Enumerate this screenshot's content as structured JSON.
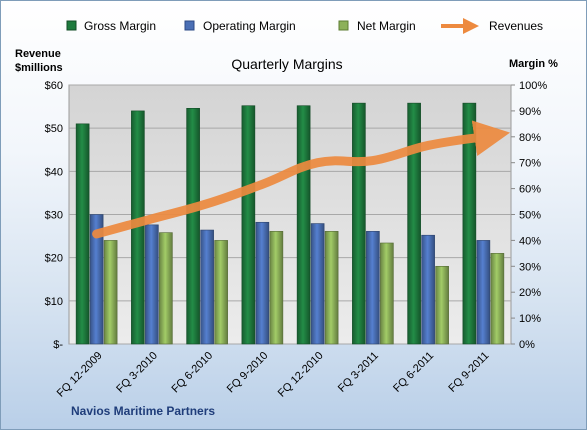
{
  "chart_data": {
    "type": "bar",
    "title": "Quarterly Margins",
    "left_axis_label_line1": "Revenue",
    "left_axis_label_line2": "$millions",
    "right_axis_label": "Margin %",
    "company_label": "Navios Maritime Partners",
    "categories": [
      "FQ 12-2009",
      "FQ 3-2010",
      "FQ 6-2010",
      "FQ 9-2010",
      "FQ 12-2010",
      "FQ 3-2011",
      "FQ 6-2011",
      "FQ 9-2011"
    ],
    "left_ticks": [
      "$-",
      "$10",
      "$20",
      "$30",
      "$40",
      "$50",
      "$60"
    ],
    "right_ticks": [
      "0%",
      "10%",
      "20%",
      "30%",
      "40%",
      "50%",
      "60%",
      "70%",
      "80%",
      "90%",
      "100%"
    ],
    "ylim_left": [
      0,
      60
    ],
    "ylim_right": [
      0,
      100
    ],
    "grid": "horizontal",
    "legend_position": "top",
    "series": [
      {
        "name": "Gross Margin",
        "axis": "right",
        "color": "#1e7b3e",
        "values": [
          85,
          90,
          91,
          92,
          92,
          93,
          93,
          93
        ]
      },
      {
        "name": "Operating Margin",
        "axis": "right",
        "color": "#4a6fb5",
        "values": [
          50,
          46,
          44,
          47,
          46.5,
          43.5,
          42,
          40
        ]
      },
      {
        "name": "Net Margin",
        "axis": "right",
        "color": "#8db15a",
        "values": [
          40,
          43,
          40,
          43.5,
          43.5,
          39,
          30,
          35
        ]
      },
      {
        "name": "Revenues",
        "axis": "left",
        "type": "line",
        "color": "#ed8a3f",
        "values": [
          25.5,
          29,
          32.5,
          37,
          42,
          42.5,
          46,
          48
        ]
      }
    ]
  }
}
